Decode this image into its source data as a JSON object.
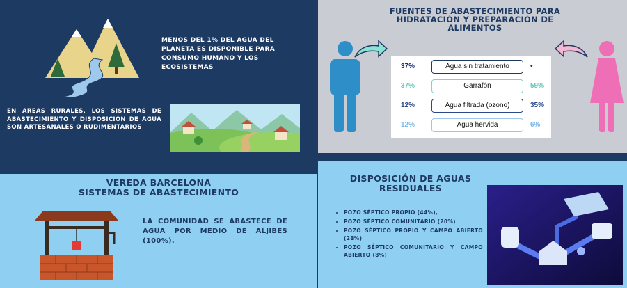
{
  "fact": {
    "text": "MENOS DEL 1% DEL AGUA DEL PLANETA ES DISPONIBLE PARA CONSUMO HUMANO Y LOS ECOSISTEMAS"
  },
  "rural": {
    "text": "EN AREAS RURALES, LOS SISTEMAS DE ABASTECIMIENTO Y DISPOSICIÓN DE AGUA SON ARTESANALES O RUDIMENTARIOS"
  },
  "sources": {
    "title": "FUENTES DE ABASTECIMIENTO PARA HIDRATACIÓN Y PREPARACIÓN DE ALIMENTOS",
    "rows": [
      [
        "37%",
        "Agua sin tratamiento",
        "•"
      ],
      [
        "37%",
        "Garrafón",
        "59%"
      ],
      [
        "12%",
        "Agua filtrada (ozono)",
        "35%"
      ],
      [
        "12%",
        "Agua hervida",
        "6%"
      ]
    ]
  },
  "vereda": {
    "title_lines": [
      "VEREDA BARCELONA",
      "SISTEMAS DE ABASTECIMIENTO"
    ],
    "text": "LA COMUNIDAD SE ABASTECE DE AGUA POR MEDIO DE ALJIBES (100%)."
  },
  "disposal": {
    "title_lines": [
      "DISPOSICIÓN DE AGUAS",
      "RESIDUALES"
    ],
    "items": [
      "POZO SÉPTICO PROPIO (44%),",
      "POZO SÉPTICO COMUNITARIO (20%)",
      "POZO SÉPTICO PROPIO Y CAMPO ABIERTO (28%)",
      "POZO SÉPTICO COMUNITARIO Y CAMPO ABIERTO (8%)"
    ]
  }
}
